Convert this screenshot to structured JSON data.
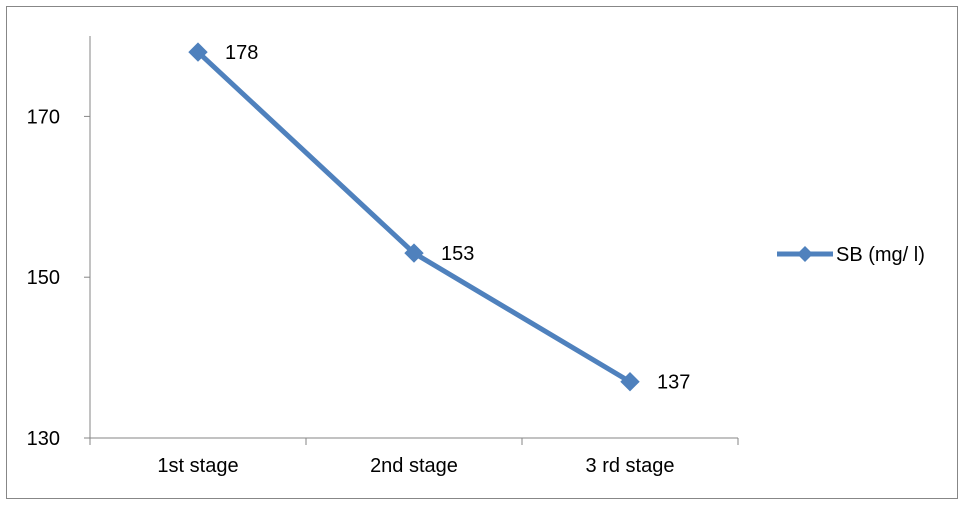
{
  "chart_data": {
    "type": "line",
    "title": "",
    "xlabel": "",
    "ylabel": "",
    "categories": [
      "1st stage",
      "2nd stage",
      "3 rd stage"
    ],
    "series": [
      {
        "name": "SB (mg/ l)",
        "values": [
          178,
          153,
          137
        ],
        "color": "#4f81bd",
        "marker": "diamond"
      }
    ],
    "ylim": [
      130,
      180
    ],
    "yticks": [
      130,
      150,
      170
    ],
    "ytick_labels": [
      "130",
      "150",
      "170"
    ],
    "data_labels": [
      "178",
      "153",
      "137"
    ],
    "grid": false,
    "legend_position": "right"
  }
}
